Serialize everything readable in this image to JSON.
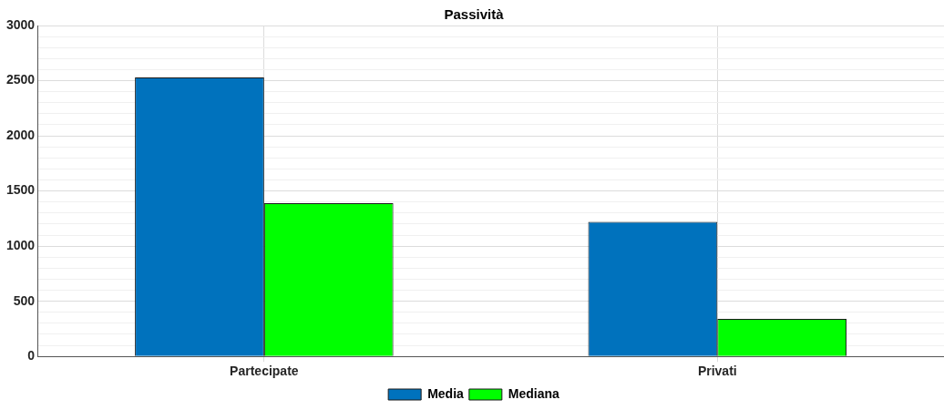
{
  "chart_data": {
    "type": "bar",
    "title": "Passività",
    "categories": [
      "Partecipate",
      "Privati"
    ],
    "series": [
      {
        "name": "Media",
        "color": "#0072bd",
        "values": [
          2530,
          1220
        ]
      },
      {
        "name": "Mediana",
        "color": "#00ff00",
        "values": [
          1390,
          340
        ]
      }
    ],
    "ylim": [
      0,
      3000
    ],
    "yticks": [
      0,
      {
        "value": 100,
        "label": null
      },
      {
        "value": 200,
        "label": null
      },
      {
        "value": 300,
        "label": null
      },
      {
        "value": 400,
        "label": null
      },
      500,
      {
        "value": 600,
        "label": null
      },
      {
        "value": 700,
        "label": null
      },
      {
        "value": 800,
        "label": null
      },
      {
        "value": 900,
        "label": null
      },
      1000,
      {
        "value": 1100,
        "label": null
      },
      {
        "value": 1200,
        "label": null
      },
      {
        "value": 1300,
        "label": null
      },
      {
        "value": 1400,
        "label": null
      },
      1500,
      {
        "value": 1600,
        "label": null
      },
      {
        "value": 1700,
        "label": null
      },
      {
        "value": 1800,
        "label": null
      },
      {
        "value": 1900,
        "label": null
      },
      2000,
      {
        "value": 2100,
        "label": null
      },
      {
        "value": 2200,
        "label": null
      },
      {
        "value": 2300,
        "label": null
      },
      {
        "value": 2400,
        "label": null
      },
      2500,
      {
        "value": 2600,
        "label": null
      },
      {
        "value": 2700,
        "label": null
      },
      {
        "value": 2800,
        "label": null
      },
      {
        "value": 2900,
        "label": null
      },
      3000
    ],
    "grid": true,
    "legend": "bottom"
  }
}
